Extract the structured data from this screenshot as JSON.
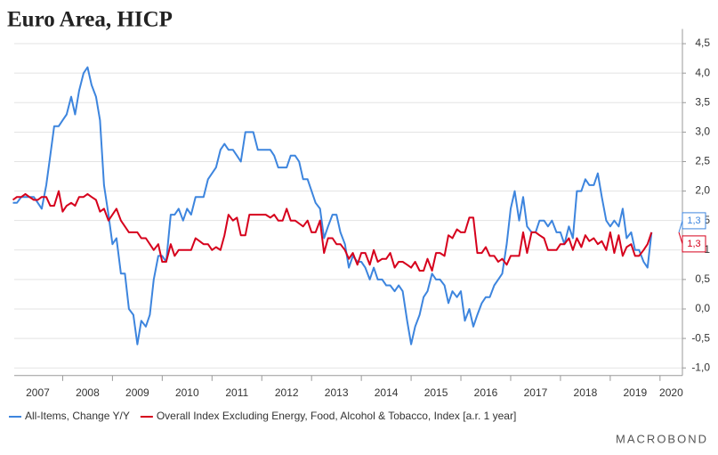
{
  "chart_data": {
    "type": "line",
    "title": "Euro Area, HICP",
    "source_logo": "MACROBOND",
    "x": [
      2007.0,
      2007.08,
      2007.17,
      2007.25,
      2007.33,
      2007.42,
      2007.5,
      2007.58,
      2007.67,
      2007.75,
      2007.83,
      2007.92,
      2008.0,
      2008.08,
      2008.17,
      2008.25,
      2008.33,
      2008.42,
      2008.5,
      2008.58,
      2008.67,
      2008.75,
      2008.83,
      2008.92,
      2009.0,
      2009.08,
      2009.17,
      2009.25,
      2009.33,
      2009.42,
      2009.5,
      2009.58,
      2009.67,
      2009.75,
      2009.83,
      2009.92,
      2010.0,
      2010.08,
      2010.17,
      2010.25,
      2010.33,
      2010.42,
      2010.5,
      2010.58,
      2010.67,
      2010.75,
      2010.83,
      2010.92,
      2011.0,
      2011.08,
      2011.17,
      2011.25,
      2011.33,
      2011.42,
      2011.5,
      2011.58,
      2011.67,
      2011.75,
      2011.83,
      2011.92,
      2012.0,
      2012.08,
      2012.17,
      2012.25,
      2012.33,
      2012.42,
      2012.5,
      2012.58,
      2012.67,
      2012.75,
      2012.83,
      2012.92,
      2013.0,
      2013.08,
      2013.17,
      2013.25,
      2013.33,
      2013.42,
      2013.5,
      2013.58,
      2013.67,
      2013.75,
      2013.83,
      2013.92,
      2014.0,
      2014.08,
      2014.17,
      2014.25,
      2014.33,
      2014.42,
      2014.5,
      2014.58,
      2014.67,
      2014.75,
      2014.83,
      2014.92,
      2015.0,
      2015.08,
      2015.17,
      2015.25,
      2015.33,
      2015.42,
      2015.5,
      2015.58,
      2015.67,
      2015.75,
      2015.83,
      2015.92,
      2016.0,
      2016.08,
      2016.17,
      2016.25,
      2016.33,
      2016.42,
      2016.5,
      2016.58,
      2016.67,
      2016.75,
      2016.83,
      2016.92,
      2017.0,
      2017.08,
      2017.17,
      2017.25,
      2017.33,
      2017.42,
      2017.5,
      2017.58,
      2017.67,
      2017.75,
      2017.83,
      2017.92,
      2018.0,
      2018.08,
      2018.17,
      2018.25,
      2018.33,
      2018.42,
      2018.5,
      2018.58,
      2018.67,
      2018.75,
      2018.83,
      2018.92,
      2019.0,
      2019.08,
      2019.17,
      2019.25,
      2019.33,
      2019.42,
      2019.5,
      2019.58,
      2019.67,
      2019.75,
      2019.83
    ],
    "series": [
      {
        "name": "All-Items, Change Y/Y",
        "color": "#3d85de",
        "values": [
          1.8,
          1.8,
          1.9,
          1.9,
          1.9,
          1.9,
          1.8,
          1.7,
          2.1,
          2.6,
          3.1,
          3.1,
          3.2,
          3.3,
          3.6,
          3.3,
          3.7,
          4.0,
          4.1,
          3.8,
          3.6,
          3.2,
          2.1,
          1.6,
          1.1,
          1.2,
          0.6,
          0.6,
          0.0,
          -0.1,
          -0.6,
          -0.2,
          -0.3,
          -0.1,
          0.5,
          0.9,
          0.9,
          0.8,
          1.6,
          1.6,
          1.7,
          1.5,
          1.7,
          1.6,
          1.9,
          1.9,
          1.9,
          2.2,
          2.3,
          2.4,
          2.7,
          2.8,
          2.7,
          2.7,
          2.6,
          2.5,
          3.0,
          3.0,
          3.0,
          2.7,
          2.7,
          2.7,
          2.7,
          2.6,
          2.4,
          2.4,
          2.4,
          2.6,
          2.6,
          2.5,
          2.2,
          2.2,
          2.0,
          1.8,
          1.7,
          1.2,
          1.4,
          1.6,
          1.6,
          1.3,
          1.1,
          0.7,
          0.9,
          0.8,
          0.8,
          0.7,
          0.5,
          0.7,
          0.5,
          0.5,
          0.4,
          0.4,
          0.3,
          0.4,
          0.3,
          -0.2,
          -0.6,
          -0.3,
          -0.1,
          0.2,
          0.3,
          0.6,
          0.5,
          0.5,
          0.4,
          0.1,
          0.3,
          0.2,
          0.3,
          -0.2,
          0.0,
          -0.3,
          -0.1,
          0.1,
          0.2,
          0.2,
          0.4,
          0.5,
          0.6,
          1.1,
          1.7,
          2.0,
          1.5,
          1.9,
          1.4,
          1.3,
          1.3,
          1.5,
          1.5,
          1.4,
          1.5,
          1.3,
          1.3,
          1.1,
          1.4,
          1.2,
          2.0,
          2.0,
          2.2,
          2.1,
          2.1,
          2.3,
          1.9,
          1.5,
          1.4,
          1.5,
          1.4,
          1.7,
          1.2,
          1.3,
          1.0,
          1.0,
          0.8,
          0.7,
          1.3
        ],
        "value_labels": [
          null,
          null,
          null,
          null,
          null,
          null,
          null,
          null,
          null,
          null,
          null,
          null,
          null,
          null,
          null,
          null,
          null,
          null,
          null,
          null,
          null,
          null,
          null,
          null,
          null,
          null,
          null,
          null,
          null,
          null,
          null,
          null,
          null,
          null,
          null,
          null,
          null,
          null,
          null,
          null,
          null,
          null,
          null,
          null,
          null,
          null,
          null,
          null,
          null,
          null,
          null,
          null,
          null,
          null,
          null,
          null,
          null,
          null,
          null,
          null,
          null,
          null,
          null,
          null,
          null,
          null,
          null,
          null,
          null,
          null,
          null,
          null,
          null,
          null,
          null,
          null,
          null,
          null,
          null,
          null,
          null,
          null,
          null,
          null,
          null,
          null,
          null,
          null,
          null,
          null,
          null,
          null,
          null,
          null,
          null,
          null,
          null,
          null,
          null,
          null,
          null,
          null,
          null,
          null,
          null,
          null,
          null,
          null,
          null,
          null,
          null,
          null,
          null,
          null,
          null,
          null,
          null,
          null,
          null,
          null,
          null,
          null,
          null,
          null,
          null,
          null,
          null,
          null,
          null,
          null,
          null,
          null,
          null,
          null,
          null,
          null,
          null,
          null,
          null,
          null,
          null,
          null,
          null,
          null,
          null,
          null,
          null,
          null,
          null,
          null,
          null,
          null,
          null,
          null,
          "1,3"
        ]
      },
      {
        "name": "Overall Index Excluding Energy, Food, Alcohol & Tobacco, Index [a.r. 1 year]",
        "color": "#d6001c",
        "values": [
          1.85,
          1.9,
          1.9,
          1.95,
          1.9,
          1.85,
          1.85,
          1.9,
          1.9,
          1.75,
          1.75,
          2.0,
          1.65,
          1.75,
          1.8,
          1.75,
          1.9,
          1.9,
          1.95,
          1.9,
          1.85,
          1.65,
          1.7,
          1.5,
          1.6,
          1.7,
          1.5,
          1.4,
          1.3,
          1.3,
          1.3,
          1.2,
          1.2,
          1.1,
          1.0,
          1.1,
          0.8,
          0.8,
          1.1,
          0.9,
          1.0,
          1.0,
          1.0,
          1.0,
          1.2,
          1.15,
          1.1,
          1.1,
          1.0,
          1.05,
          1.0,
          1.25,
          1.6,
          1.5,
          1.55,
          1.25,
          1.25,
          1.6,
          1.6,
          1.6,
          1.6,
          1.6,
          1.55,
          1.6,
          1.5,
          1.5,
          1.7,
          1.5,
          1.5,
          1.45,
          1.4,
          1.5,
          1.3,
          1.3,
          1.5,
          0.95,
          1.2,
          1.2,
          1.1,
          1.1,
          1.0,
          0.85,
          0.95,
          0.75,
          0.95,
          0.95,
          0.75,
          1.0,
          0.8,
          0.85,
          0.85,
          0.95,
          0.7,
          0.8,
          0.8,
          0.75,
          0.7,
          0.8,
          0.65,
          0.65,
          0.85,
          0.65,
          0.95,
          0.95,
          0.9,
          1.25,
          1.2,
          1.35,
          1.3,
          1.3,
          1.55,
          1.55,
          0.95,
          0.95,
          1.05,
          0.9,
          0.9,
          0.8,
          0.85,
          0.75,
          0.9,
          0.9,
          0.9,
          1.3,
          0.95,
          1.3,
          1.3,
          1.25,
          1.2,
          1.0,
          1.0,
          1.0,
          1.1,
          1.1,
          1.2,
          1.0,
          1.2,
          1.05,
          1.25,
          1.15,
          1.2,
          1.1,
          1.15,
          1.0,
          1.3,
          0.95,
          1.25,
          0.9,
          1.05,
          1.1,
          0.9,
          0.9,
          1.0,
          1.1,
          1.3
        ],
        "value_labels": [
          null,
          null,
          null,
          null,
          null,
          null,
          null,
          null,
          null,
          null,
          null,
          null,
          null,
          null,
          null,
          null,
          null,
          null,
          null,
          null,
          null,
          null,
          null,
          null,
          null,
          null,
          null,
          null,
          null,
          null,
          null,
          null,
          null,
          null,
          null,
          null,
          null,
          null,
          null,
          null,
          null,
          null,
          null,
          null,
          null,
          null,
          null,
          null,
          null,
          null,
          null,
          null,
          null,
          null,
          null,
          null,
          null,
          null,
          null,
          null,
          null,
          null,
          null,
          null,
          null,
          null,
          null,
          null,
          null,
          null,
          null,
          null,
          null,
          null,
          null,
          null,
          null,
          null,
          null,
          null,
          null,
          null,
          null,
          null,
          null,
          null,
          null,
          null,
          null,
          null,
          null,
          null,
          null,
          null,
          null,
          null,
          null,
          null,
          null,
          null,
          null,
          null,
          null,
          null,
          null,
          null,
          null,
          null,
          null,
          null,
          null,
          null,
          null,
          null,
          null,
          null,
          null,
          null,
          null,
          null,
          null,
          null,
          null,
          null,
          null,
          null,
          null,
          null,
          null,
          null,
          null,
          null,
          null,
          null,
          null,
          null,
          null,
          null,
          null,
          null,
          null,
          null,
          null,
          null,
          null,
          null,
          null,
          null,
          null,
          null,
          null,
          null,
          null,
          null,
          "1,3"
        ]
      }
    ],
    "xlim": [
      2007.0,
      2020.45
    ],
    "xticks": [
      2007,
      2008,
      2009,
      2010,
      2011,
      2012,
      2013,
      2014,
      2015,
      2016,
      2017,
      2018,
      2019,
      2020
    ],
    "ylim": [
      -1.13,
      4.75
    ],
    "yticks": [
      {
        "value": -1.0,
        "label": "-1,0"
      },
      {
        "value": -0.5,
        "label": "-0,5"
      },
      {
        "value": 0.0,
        "label": "0,0"
      },
      {
        "value": 0.5,
        "label": "0,5"
      },
      {
        "value": 1,
        "label": "1"
      },
      {
        "value": 1.5,
        "label": "1,5"
      },
      {
        "value": 2.0,
        "label": "2,0"
      },
      {
        "value": 2.5,
        "label": "2,5"
      },
      {
        "value": 3.0,
        "label": "3,0"
      },
      {
        "value": 3.5,
        "label": "3,5"
      },
      {
        "value": 4.0,
        "label": "4,0"
      },
      {
        "value": 4.5,
        "label": "4,5"
      }
    ],
    "grid": true
  }
}
